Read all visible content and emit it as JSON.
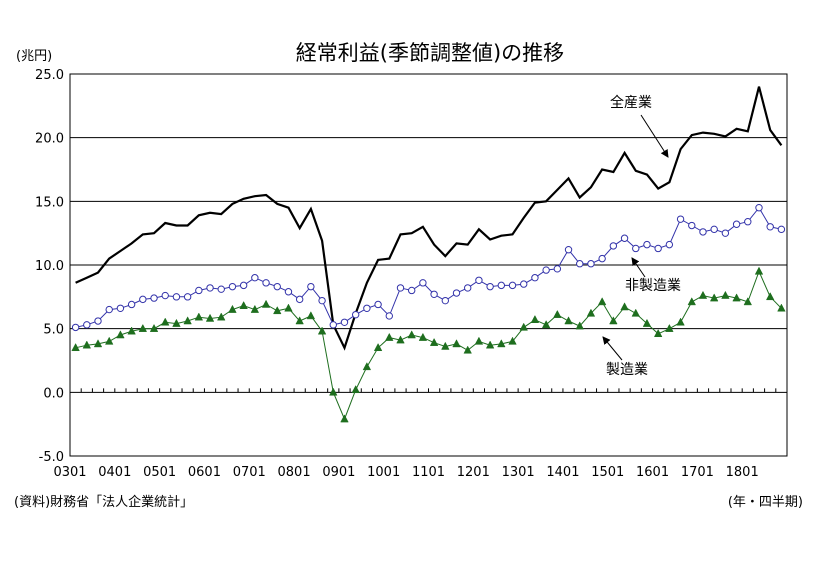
{
  "chart_data": {
    "type": "line",
    "title": "経常利益(季節調整値)の推移",
    "ylabel": "(兆円)",
    "xlabel": "(年・四半期)",
    "source": "(資料)財務省「法人企業統計」",
    "ylim": [
      -5,
      25
    ],
    "yticks": [
      "25.0",
      "20.0",
      "15.0",
      "10.0",
      "5.0",
      "0.0",
      "-5.0"
    ],
    "ytick_values": [
      25,
      20,
      15,
      10,
      5,
      0,
      -5
    ],
    "gridlines": [
      25,
      20,
      15,
      10,
      5
    ],
    "xtick_labels": [
      "0301",
      "0401",
      "0501",
      "0601",
      "0701",
      "0801",
      "0901",
      "1001",
      "1101",
      "1201",
      "1301",
      "1401",
      "1501",
      "1601",
      "1701",
      "1801"
    ],
    "x_start": "2003Q1",
    "x_end": "2018Q4",
    "series": [
      {
        "name": "全産業",
        "color": "#000000",
        "marker": "none",
        "values": [
          8.6,
          9.0,
          9.4,
          10.5,
          11.1,
          11.7,
          12.4,
          12.5,
          13.3,
          13.1,
          13.1,
          13.9,
          14.1,
          14.0,
          14.8,
          15.2,
          15.4,
          15.5,
          14.8,
          14.5,
          12.9,
          14.4,
          11.9,
          5.3,
          3.5,
          6.2,
          8.6,
          10.4,
          10.5,
          12.4,
          12.5,
          13.0,
          11.6,
          10.7,
          11.7,
          11.6,
          12.8,
          12.0,
          12.3,
          12.4,
          13.7,
          14.9,
          15.0,
          15.9,
          16.8,
          15.3,
          16.1,
          17.5,
          17.3,
          18.8,
          17.4,
          17.1,
          16.0,
          16.5,
          19.1,
          20.2,
          20.4,
          20.3,
          20.1,
          20.7,
          20.5,
          24.0,
          20.6,
          19.4
        ]
      },
      {
        "name": "非製造業",
        "color": "#3333aa",
        "marker": "open-circle",
        "values": [
          5.1,
          5.3,
          5.6,
          6.5,
          6.6,
          6.9,
          7.3,
          7.4,
          7.6,
          7.5,
          7.5,
          8.0,
          8.2,
          8.1,
          8.3,
          8.4,
          9.0,
          8.6,
          8.3,
          7.9,
          7.3,
          8.3,
          7.2,
          5.3,
          5.5,
          6.1,
          6.6,
          6.9,
          6.0,
          8.2,
          8.0,
          8.6,
          7.7,
          7.2,
          7.8,
          8.2,
          8.8,
          8.3,
          8.4,
          8.4,
          8.5,
          9.0,
          9.6,
          9.7,
          11.2,
          10.1,
          10.1,
          10.5,
          11.5,
          12.1,
          11.3,
          11.6,
          11.3,
          11.6,
          13.6,
          13.1,
          12.6,
          12.8,
          12.5,
          13.2,
          13.4,
          14.5,
          13.0,
          12.8
        ]
      },
      {
        "name": "製造業",
        "color": "#1e6e1e",
        "marker": "filled-triangle",
        "values": [
          3.5,
          3.7,
          3.8,
          4.0,
          4.5,
          4.8,
          5.0,
          5.0,
          5.5,
          5.4,
          5.6,
          5.9,
          5.8,
          5.9,
          6.5,
          6.8,
          6.5,
          6.9,
          6.4,
          6.6,
          5.6,
          6.0,
          4.8,
          0.0,
          -2.1,
          0.2,
          2.0,
          3.5,
          4.3,
          4.1,
          4.5,
          4.3,
          3.9,
          3.6,
          3.8,
          3.3,
          4.0,
          3.7,
          3.8,
          4.0,
          5.1,
          5.7,
          5.3,
          6.1,
          5.6,
          5.2,
          6.2,
          7.1,
          5.6,
          6.7,
          6.2,
          5.4,
          4.6,
          5.0,
          5.5,
          7.1,
          7.6,
          7.4,
          7.6,
          7.4,
          7.1,
          9.5,
          7.5,
          6.6
        ]
      }
    ],
    "annotations": [
      {
        "text": "全産業",
        "series": 0,
        "point_index": 53
      },
      {
        "text": "非製造業",
        "series": 1,
        "point_index": 45
      },
      {
        "text": "製造業",
        "series": 2,
        "point_index": 45
      }
    ]
  }
}
